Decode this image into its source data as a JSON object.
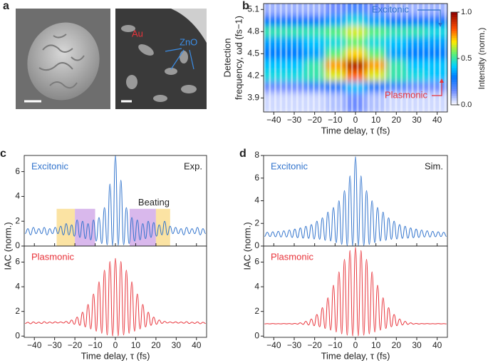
{
  "panel_a": {
    "label": "a",
    "labels": [
      "Au",
      "ZnO"
    ]
  },
  "chart_data": [
    {
      "type": "heatmap",
      "panel_label": "b",
      "xlabel": "Time delay, τ (fs)",
      "ylabel": [
        "Detection",
        "frequency, ωd (fs−1)"
      ],
      "colorbar_label": "Intensity (norm.)",
      "colormap": "jet",
      "x": [
        -40,
        -30,
        -20,
        -10,
        0,
        10,
        20,
        30,
        40
      ],
      "y": [
        3.9,
        4.05,
        4.2,
        4.35,
        4.5,
        4.65,
        4.8,
        4.95,
        5.1
      ],
      "z": [
        [
          0.05,
          0.05,
          0.05,
          0.08,
          0.15,
          0.08,
          0.05,
          0.05,
          0.05
        ],
        [
          0.15,
          0.15,
          0.2,
          0.3,
          0.4,
          0.3,
          0.2,
          0.15,
          0.15
        ],
        [
          0.45,
          0.45,
          0.5,
          0.65,
          0.8,
          0.65,
          0.5,
          0.45,
          0.4
        ],
        [
          0.4,
          0.4,
          0.5,
          0.75,
          0.95,
          0.75,
          0.5,
          0.4,
          0.4
        ],
        [
          0.3,
          0.3,
          0.35,
          0.55,
          0.7,
          0.55,
          0.35,
          0.3,
          0.3
        ],
        [
          0.35,
          0.35,
          0.4,
          0.45,
          0.55,
          0.45,
          0.4,
          0.35,
          0.35
        ],
        [
          0.5,
          0.5,
          0.5,
          0.55,
          0.65,
          0.55,
          0.5,
          0.5,
          0.45
        ],
        [
          0.3,
          0.3,
          0.3,
          0.35,
          0.45,
          0.35,
          0.3,
          0.3,
          0.3
        ],
        [
          0.1,
          0.1,
          0.1,
          0.15,
          0.2,
          0.15,
          0.1,
          0.1,
          0.1
        ]
      ],
      "xlim": [
        -45,
        45
      ],
      "ylim": [
        3.71,
        5.18
      ],
      "xticks": [
        {
          "value": -40,
          "label": "−40"
        },
        {
          "value": -30,
          "label": "−30"
        },
        {
          "value": -20,
          "label": "−20"
        },
        {
          "value": -10,
          "label": "−10"
        },
        0,
        10,
        20,
        30,
        40
      ],
      "yticks": [
        3.9,
        4.2,
        4.5,
        4.8,
        5.1
      ],
      "clim": [
        0,
        1
      ],
      "cticks": [
        {
          "value": 0,
          "label": "0.0"
        },
        0.5,
        {
          "value": 1,
          "label": "1.0"
        }
      ],
      "annotations": [
        {
          "text": "Excitonic",
          "color": "#2f72cc"
        },
        {
          "text": "Plasmonic",
          "color": "#e8333a"
        }
      ]
    },
    {
      "type": "line",
      "panel_label": "c",
      "ylabel": "IAC (norm.)",
      "annotation": "Exp.",
      "beating_label": "Beating",
      "shaded_regions": [
        {
          "x": [
            -29,
            -20
          ],
          "y": [
            0,
            3
          ],
          "color": "#fbe3a3"
        },
        {
          "x": [
            -20,
            -10
          ],
          "y": [
            0,
            3
          ],
          "color": "#d9b8ec"
        },
        {
          "x": [
            7,
            20
          ],
          "y": [
            0,
            3
          ],
          "color": "#d9b8ec"
        },
        {
          "x": [
            20,
            27
          ],
          "y": [
            0,
            3
          ],
          "color": "#fbe3a3"
        }
      ],
      "x": [
        -44.55,
        -43.2,
        -41.85,
        -40.5,
        -39.15,
        -37.8,
        -36.45,
        -35.1,
        -33.75,
        -32.4,
        -31.05,
        -29.7,
        -28.35,
        -27,
        -25.65,
        -24.3,
        -22.95,
        -21.6,
        -20.25,
        -18.9,
        -17.55,
        -16.2,
        -14.85,
        -13.5,
        -12.15,
        -10.8,
        -9.45,
        -8.1,
        -6.75,
        -5.4,
        -4.05,
        -2.7,
        -1.35,
        0,
        1.35,
        2.7,
        4.05,
        5.4,
        6.75,
        8.1,
        9.45,
        10.8,
        12.15,
        13.5,
        14.85,
        16.2,
        17.55,
        18.9,
        20.25,
        21.6,
        22.95,
        24.3,
        25.65,
        27,
        28.35,
        29.7,
        31.05,
        32.4,
        33.75,
        35.1,
        36.45,
        37.8,
        39.15,
        40.5,
        41.85,
        43.2,
        44.55
      ],
      "series": [
        {
          "name": "Excitonic",
          "color": "#2f72cc",
          "values": [
            1.0,
            1.4,
            0.9,
            1.5,
            1.0,
            1.4,
            1.0,
            1.5,
            0.9,
            1.4,
            1.0,
            1.5,
            1.0,
            1.6,
            0.9,
            1.8,
            0.9,
            1.7,
            0.8,
            2.1,
            0.7,
            2.0,
            0.6,
            1.8,
            0.5,
            2.1,
            0.4,
            2.3,
            0.2,
            3.1,
            0.1,
            5.0,
            0.05,
            7.3,
            0.05,
            5.3,
            0.1,
            3.1,
            0.2,
            2.3,
            0.4,
            2.1,
            0.5,
            1.8,
            0.6,
            2.0,
            0.7,
            1.9,
            0.8,
            1.7,
            0.9,
            2.0,
            0.9,
            1.6,
            1.0,
            1.5,
            1.0,
            1.4,
            0.9,
            1.5,
            1.0,
            1.4,
            1.0,
            1.5,
            0.9,
            1.4,
            1.0
          ]
        }
      ],
      "xlim": [
        -45,
        45
      ],
      "ylim": [
        0,
        7.3
      ],
      "xticks": [
        -40,
        -30,
        -20,
        -10,
        0,
        10,
        20,
        30,
        40
      ],
      "yticks": [
        0,
        2,
        4,
        6
      ]
    },
    {
      "type": "line",
      "xlabel": "Time delay, τ (fs)",
      "x": [
        -44.55,
        -43.2,
        -41.85,
        -40.5,
        -39.15,
        -37.8,
        -36.45,
        -35.1,
        -33.75,
        -32.4,
        -31.05,
        -29.7,
        -28.35,
        -27,
        -25.65,
        -24.3,
        -22.95,
        -21.6,
        -20.25,
        -18.9,
        -17.55,
        -16.2,
        -14.85,
        -13.5,
        -12.15,
        -10.8,
        -9.45,
        -8.1,
        -6.75,
        -5.4,
        -4.05,
        -2.7,
        -1.35,
        0,
        1.35,
        2.7,
        4.05,
        5.4,
        6.75,
        8.1,
        9.45,
        10.8,
        12.15,
        13.5,
        14.85,
        16.2,
        17.55,
        18.9,
        20.25,
        21.6,
        22.95,
        24.3,
        25.65,
        27,
        28.35,
        29.7,
        31.05,
        32.4,
        33.75,
        35.1,
        36.45,
        37.8,
        39.15,
        40.5,
        41.85,
        43.2,
        44.55
      ],
      "series": [
        {
          "name": "Plasmonic",
          "color": "#e8333a",
          "values": [
            1.02,
            1.12,
            1.0,
            1.15,
            1.03,
            1.13,
            1.02,
            1.17,
            1.04,
            1.14,
            1.05,
            1.16,
            1.06,
            1.15,
            1.06,
            1.19,
            1.03,
            1.3,
            0.96,
            1.54,
            0.87,
            1.94,
            0.74,
            2.57,
            0.58,
            3.41,
            0.4,
            4.4,
            0.23,
            5.35,
            0.09,
            6.05,
            0.01,
            6.3,
            0.01,
            6.05,
            0.09,
            5.35,
            0.23,
            4.4,
            0.4,
            3.41,
            0.58,
            2.57,
            0.74,
            1.94,
            0.87,
            1.54,
            0.96,
            1.3,
            1.03,
            1.19,
            1.06,
            1.15,
            1.06,
            1.16,
            1.05,
            1.14,
            1.04,
            1.17,
            1.02,
            1.13,
            1.03,
            1.15,
            1.0,
            1.12,
            1.02
          ]
        }
      ],
      "xlim": [
        -45,
        45
      ],
      "ylim": [
        -0.1,
        7.3
      ],
      "xticks": [
        {
          "value": -40,
          "label": "−40"
        },
        {
          "value": -30,
          "label": "−30"
        },
        {
          "value": -20,
          "label": "−20"
        },
        {
          "value": -10,
          "label": "−10"
        },
        0,
        10,
        20,
        30,
        40
      ],
      "yticks": [
        0,
        2,
        4,
        6
      ]
    },
    {
      "type": "line",
      "panel_label": "d",
      "ylabel": "IAC (norm.)",
      "annotation": "Sim.",
      "x": [
        -44.55,
        -43.2,
        -41.85,
        -40.5,
        -39.15,
        -37.8,
        -36.45,
        -35.1,
        -33.75,
        -32.4,
        -31.05,
        -29.7,
        -28.35,
        -27,
        -25.65,
        -24.3,
        -22.95,
        -21.6,
        -20.25,
        -18.9,
        -17.55,
        -16.2,
        -14.85,
        -13.5,
        -12.15,
        -10.8,
        -9.45,
        -8.1,
        -6.75,
        -5.4,
        -4.05,
        -2.7,
        -1.35,
        0,
        1.35,
        2.7,
        4.05,
        5.4,
        6.75,
        8.1,
        9.45,
        10.8,
        12.15,
        13.5,
        14.85,
        16.2,
        17.55,
        18.9,
        20.25,
        21.6,
        22.95,
        24.3,
        25.65,
        27,
        28.35,
        29.7,
        31.05,
        32.4,
        33.75,
        35.1,
        36.45,
        37.8,
        39.15,
        40.5,
        41.85,
        43.2,
        44.55
      ],
      "series": [
        {
          "name": "Excitonic",
          "color": "#2f72cc",
          "values": [
            0.85,
            1.22,
            0.84,
            1.26,
            0.82,
            1.3,
            0.8,
            1.35,
            0.8,
            1.42,
            0.76,
            1.5,
            0.74,
            1.6,
            0.7,
            1.75,
            0.68,
            1.9,
            0.62,
            2.2,
            0.6,
            2.5,
            0.5,
            3.0,
            0.45,
            3.4,
            0.3,
            4.0,
            0.15,
            4.9,
            0.05,
            6.2,
            0.02,
            7.9,
            0.02,
            6.2,
            0.05,
            4.9,
            0.15,
            4.0,
            0.3,
            3.4,
            0.45,
            3.0,
            0.5,
            2.5,
            0.6,
            2.2,
            0.62,
            1.9,
            0.68,
            1.75,
            0.7,
            1.6,
            0.74,
            1.5,
            0.76,
            1.42,
            0.8,
            1.35,
            0.8,
            1.3,
            0.82,
            1.26,
            0.84,
            1.22,
            0.85
          ]
        }
      ],
      "xlim": [
        -45,
        45
      ],
      "ylim": [
        0,
        8
      ],
      "xticks": [
        -40,
        -30,
        -20,
        -10,
        0,
        10,
        20,
        30,
        40
      ],
      "yticks": [
        0,
        2,
        4,
        6,
        8
      ]
    },
    {
      "type": "line",
      "xlabel": "Time delay, τ (fs)",
      "x": [
        -44.55,
        -43.2,
        -41.85,
        -40.5,
        -39.15,
        -37.8,
        -36.45,
        -35.1,
        -33.75,
        -32.4,
        -31.05,
        -29.7,
        -28.35,
        -27,
        -25.65,
        -24.3,
        -22.95,
        -21.6,
        -20.25,
        -18.9,
        -17.55,
        -16.2,
        -14.85,
        -13.5,
        -12.15,
        -10.8,
        -9.45,
        -8.1,
        -6.75,
        -5.4,
        -4.05,
        -2.7,
        -1.35,
        0,
        1.35,
        2.7,
        4.05,
        5.4,
        6.75,
        8.1,
        9.45,
        10.8,
        12.15,
        13.5,
        14.85,
        16.2,
        17.55,
        18.9,
        20.25,
        21.6,
        22.95,
        24.3,
        25.65,
        27,
        28.35,
        29.7,
        31.05,
        32.4,
        33.75,
        35.1,
        36.45,
        37.8,
        39.15,
        40.5,
        41.85,
        43.2,
        44.55
      ],
      "series": [
        {
          "name": "Plasmonic",
          "color": "#e8333a",
          "values": [
            0.99,
            1.01,
            0.99,
            1.02,
            0.99,
            1.01,
            0.99,
            1.02,
            0.99,
            1.02,
            0.98,
            1.03,
            0.97,
            1.08,
            0.95,
            1.19,
            0.9,
            1.39,
            0.84,
            1.75,
            0.75,
            2.31,
            0.62,
            3.11,
            0.48,
            4.12,
            0.33,
            5.21,
            0.18,
            6.22,
            0.07,
            6.94,
            0.01,
            7.2,
            0.01,
            6.94,
            0.07,
            6.22,
            0.18,
            5.21,
            0.33,
            4.12,
            0.48,
            3.11,
            0.62,
            2.31,
            0.75,
            1.75,
            0.84,
            1.39,
            0.9,
            1.19,
            0.95,
            1.08,
            0.97,
            1.03,
            0.98,
            1.02,
            0.99,
            1.02,
            0.99,
            1.01,
            0.99,
            1.02,
            0.99,
            1.01,
            0.99
          ]
        }
      ],
      "xlim": [
        -45,
        45
      ],
      "ylim": [
        -0.1,
        7.3
      ],
      "xticks": [
        {
          "value": -40,
          "label": "−40"
        },
        {
          "value": -30,
          "label": "−30"
        },
        {
          "value": -20,
          "label": "−20"
        },
        {
          "value": -10,
          "label": "−10"
        },
        0,
        10,
        20,
        30,
        40
      ],
      "yticks": [
        0,
        2,
        4,
        6
      ]
    }
  ]
}
